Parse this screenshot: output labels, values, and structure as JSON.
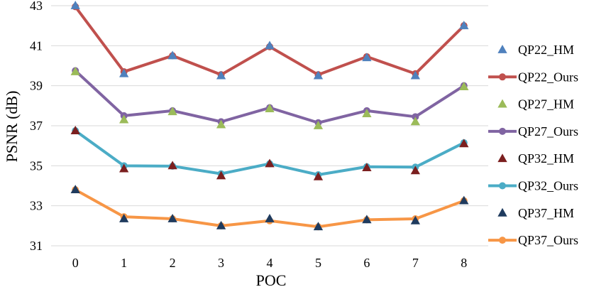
{
  "chart_data": {
    "type": "line",
    "title": "",
    "xlabel": "POC",
    "ylabel": "PSNR (dB)",
    "x": [
      0,
      1,
      2,
      3,
      4,
      5,
      6,
      7,
      8
    ],
    "x_tick_labels": [
      "0",
      "1",
      "2",
      "3",
      "4",
      "5",
      "6",
      "7",
      "8"
    ],
    "ylim": [
      31,
      43
    ],
    "y_ticks": [
      31,
      33,
      35,
      37,
      39,
      41,
      43
    ],
    "y_tick_labels": [
      "31",
      "33",
      "35",
      "37",
      "39",
      "41",
      "43"
    ],
    "grid": "horizontal",
    "legend_position": "right",
    "series": [
      {
        "name": "QP22_HM",
        "kind": "marker-triangle",
        "color": "#4f81bd",
        "values": [
          43.0,
          39.6,
          40.5,
          39.5,
          41.0,
          39.5,
          40.4,
          39.5,
          42.0
        ]
      },
      {
        "name": "QP22_Ours",
        "kind": "line-circle",
        "color": "#c0504d",
        "values": [
          42.95,
          39.7,
          40.5,
          39.55,
          40.95,
          39.55,
          40.45,
          39.6,
          42.0
        ]
      },
      {
        "name": "QP27_HM",
        "kind": "marker-triangle",
        "color": "#9bbb59",
        "values": [
          39.7,
          37.3,
          37.7,
          37.05,
          37.85,
          37.0,
          37.6,
          37.2,
          38.95
        ]
      },
      {
        "name": "QP27_Ours",
        "kind": "line-circle",
        "color": "#8064a2",
        "values": [
          39.75,
          37.5,
          37.75,
          37.2,
          37.9,
          37.15,
          37.75,
          37.45,
          39.0
        ]
      },
      {
        "name": "QP32_HM",
        "kind": "marker-triangle",
        "color": "#7b1f1f",
        "values": [
          36.75,
          34.85,
          35.0,
          34.5,
          35.1,
          34.45,
          34.9,
          34.75,
          36.1
        ]
      },
      {
        "name": "QP32_Ours",
        "kind": "line-circle",
        "color": "#4bacc6",
        "values": [
          36.75,
          35.0,
          34.98,
          34.6,
          35.1,
          34.55,
          34.95,
          34.93,
          36.15
        ]
      },
      {
        "name": "QP37_HM",
        "kind": "marker-triangle",
        "color": "#1f3b5e",
        "values": [
          33.8,
          32.35,
          32.35,
          32.0,
          32.35,
          31.95,
          32.3,
          32.25,
          33.25
        ]
      },
      {
        "name": "QP37_Ours",
        "kind": "line-circle",
        "color": "#f79646",
        "values": [
          33.8,
          32.45,
          32.35,
          32.0,
          32.25,
          31.95,
          32.3,
          32.35,
          33.25
        ]
      }
    ]
  }
}
